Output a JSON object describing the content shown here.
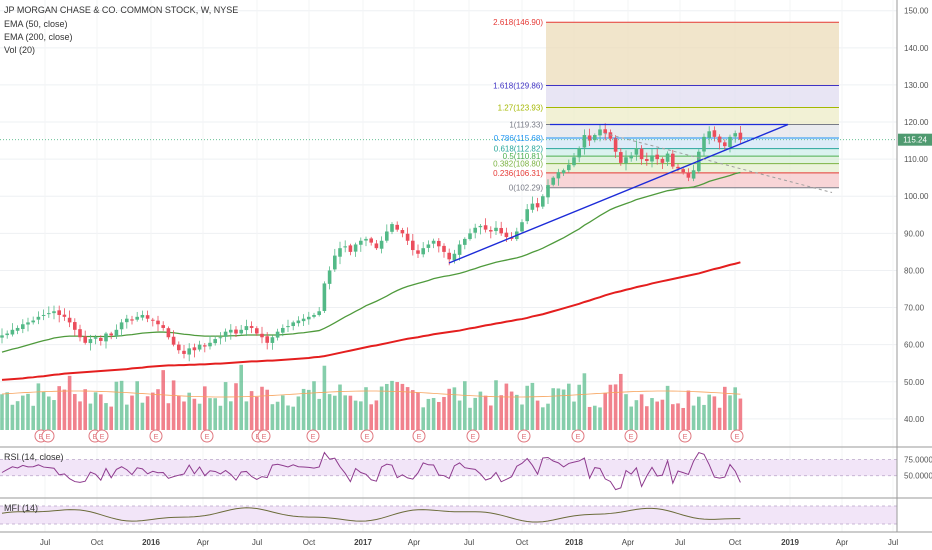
{
  "header": {
    "title": "JP MORGAN CHASE & CO. COMMON STOCK, W, NYSE",
    "ema50": "EMA (50, close)",
    "ema200": "EMA (200, close)",
    "vol": "Vol (20)"
  },
  "panes": {
    "rsi_label": "RSI (14, close)",
    "mfi_label": "MFI (14)"
  },
  "price_tag": "115.24",
  "colors": {
    "up": "#53b987",
    "down": "#eb4d5c",
    "ema50": "#4f9a3c",
    "ema200": "#e41e1e",
    "trend": "#1c2bd8",
    "rsi": "#8e3b8e",
    "mfi": "#6b6b3a"
  },
  "chart_data": [
    {
      "type": "candlestick",
      "title": "JP MORGAN CHASE & CO. COMMON STOCK, W, NYSE",
      "x_axis": {
        "tick_labels": [
          "Jul",
          "Oct",
          "2016",
          "Apr",
          "Jul",
          "Oct",
          "2017",
          "Apr",
          "Jul",
          "Oct",
          "2018",
          "Apr",
          "Jul",
          "Oct",
          "2019",
          "Apr",
          "Jul"
        ]
      },
      "y_axis": {
        "side": "right",
        "range": [
          37,
          151
        ],
        "ticks": [
          40,
          50,
          60,
          70,
          80,
          90,
          100,
          110,
          120,
          130,
          140,
          150
        ]
      },
      "last_price": 115.24,
      "fibonacci_levels": [
        {
          "label": "0(102.29)",
          "ratio": 0,
          "value": 102.29,
          "color": "#787b86"
        },
        {
          "label": "0.236(106.31)",
          "ratio": 0.236,
          "value": 106.31,
          "color": "#e53935"
        },
        {
          "label": "0.382(108.80)",
          "ratio": 0.382,
          "value": 108.8,
          "color": "#7cb342"
        },
        {
          "label": "0.5(110.81)",
          "ratio": 0.5,
          "value": 110.81,
          "color": "#4caf50"
        },
        {
          "label": "0.618(112.82)",
          "ratio": 0.618,
          "value": 112.82,
          "color": "#26a69a"
        },
        {
          "label": "0.786(115.68)",
          "ratio": 0.786,
          "value": 115.68,
          "color": "#2196f3"
        },
        {
          "label": "1(119.33)",
          "ratio": 1,
          "value": 119.33,
          "color": "#787b86"
        },
        {
          "label": "1.27(123.93)",
          "ratio": 1.27,
          "value": 123.93,
          "color": "#a4b800"
        },
        {
          "label": "1.618(129.86)",
          "ratio": 1.618,
          "value": 129.86,
          "color": "#3f33c4"
        },
        {
          "label": "2.618(146.90)",
          "ratio": 2.618,
          "value": 146.9,
          "color": "#e53935"
        }
      ],
      "approx_weekly_close": [
        62.5,
        63.0,
        64.0,
        64.5,
        65.5,
        66.0,
        66.5,
        67.5,
        68.0,
        68.5,
        69.0,
        68.0,
        67.5,
        66.0,
        64.0,
        62.0,
        60.5,
        61.5,
        62.0,
        61.0,
        63.0,
        62.5,
        64.0,
        66.0,
        67.0,
        66.5,
        67.5,
        68.0,
        67.0,
        66.5,
        65.5,
        64.5,
        62.0,
        60.0,
        58.5,
        57.5,
        59.0,
        58.5,
        60.0,
        59.5,
        60.5,
        61.5,
        62.0,
        63.5,
        64.0,
        63.0,
        64.0,
        65.0,
        64.5,
        63.0,
        62.0,
        60.5,
        62.0,
        63.5,
        64.5,
        65.0,
        66.0,
        66.5,
        67.0,
        67.5,
        68.0,
        69.0,
        76.5,
        80.0,
        84.0,
        86.0,
        86.5,
        85.0,
        87.0,
        88.0,
        88.5,
        87.5,
        86.0,
        88.0,
        90.5,
        92.5,
        91.0,
        90.0,
        88.0,
        85.5,
        84.5,
        86.0,
        87.0,
        88.0,
        86.5,
        85.0,
        83.0,
        84.5,
        87.0,
        88.5,
        90.0,
        91.5,
        92.0,
        91.0,
        90.5,
        91.5,
        90.0,
        89.0,
        88.5,
        90.5,
        93.0,
        96.5,
        98.0,
        97.0,
        100.0,
        103.0,
        105.0,
        106.5,
        107.0,
        108.5,
        110.5,
        113.0,
        116.5,
        115.0,
        116.5,
        118.0,
        117.0,
        115.5,
        112.0,
        109.0,
        110.5,
        111.0,
        113.0,
        110.0,
        109.5,
        111.0,
        110.0,
        109.0,
        111.5,
        108.0,
        107.5,
        106.5,
        105.0,
        107.0,
        112.0,
        116.0,
        117.5,
        116.0,
        114.5,
        113.5,
        116.0,
        117.0,
        115.24
      ],
      "approx_ema50": [
        58.0,
        58.4,
        58.8,
        59.1,
        59.5,
        59.9,
        60.3,
        60.7,
        61.1,
        61.4,
        61.8,
        62.0,
        62.2,
        62.3,
        62.3,
        62.3,
        62.2,
        62.2,
        62.2,
        62.2,
        62.2,
        62.2,
        62.3,
        62.4,
        62.6,
        62.7,
        62.9,
        63.1,
        63.2,
        63.3,
        63.4,
        63.4,
        63.3,
        63.2,
        63.0,
        62.8,
        62.7,
        62.5,
        62.4,
        62.3,
        62.3,
        62.3,
        62.3,
        62.3,
        62.4,
        62.4,
        62.5,
        62.6,
        62.6,
        62.6,
        62.6,
        62.6,
        62.6,
        62.6,
        62.7,
        62.8,
        62.9,
        63.1,
        63.2,
        63.4,
        63.6,
        63.8,
        64.4,
        65.1,
        65.9,
        66.7,
        67.5,
        68.2,
        69.0,
        69.7,
        70.5,
        71.1,
        71.7,
        72.4,
        73.1,
        73.9,
        74.6,
        75.2,
        75.7,
        76.1,
        76.5,
        76.9,
        77.3,
        77.8,
        78.1,
        78.4,
        78.6,
        78.9,
        79.2,
        79.6,
        80.1,
        80.5,
        81.0,
        81.4,
        81.8,
        82.2,
        82.5,
        82.8,
        83.1,
        83.4,
        83.8,
        84.3,
        84.9,
        85.4,
        86.0,
        86.7,
        87.4,
        88.1,
        88.8,
        89.6,
        90.4,
        91.2,
        92.2,
        93.0,
        93.9,
        94.8,
        95.6,
        96.4,
        97.0,
        97.5,
        98.0,
        98.5,
        99.1,
        99.5,
        99.9,
        100.3,
        100.7,
        101.1,
        101.5,
        101.7,
        102.0,
        102.2,
        102.3,
        102.5,
        102.9,
        103.4,
        104.0,
        104.4,
        104.8,
        105.2,
        105.6,
        106.1,
        106.4
      ],
      "approx_ema200": [
        50.5,
        50.6,
        50.7,
        50.8,
        50.9,
        51.1,
        51.2,
        51.4,
        51.5,
        51.7,
        51.9,
        52.0,
        52.2,
        52.3,
        52.4,
        52.5,
        52.6,
        52.7,
        52.8,
        52.9,
        53.0,
        53.1,
        53.2,
        53.3,
        53.4,
        53.6,
        53.7,
        53.8,
        54.0,
        54.1,
        54.2,
        54.3,
        54.4,
        54.4,
        54.5,
        54.5,
        54.6,
        54.6,
        54.7,
        54.7,
        54.8,
        54.9,
        54.9,
        55.0,
        55.1,
        55.2,
        55.3,
        55.4,
        55.5,
        55.5,
        55.6,
        55.7,
        55.7,
        55.8,
        55.9,
        56.0,
        56.1,
        56.2,
        56.3,
        56.4,
        56.6,
        56.7,
        56.9,
        57.2,
        57.5,
        57.8,
        58.1,
        58.4,
        58.7,
        59.0,
        59.3,
        59.6,
        59.8,
        60.1,
        60.4,
        60.7,
        61.0,
        61.3,
        61.6,
        61.8,
        62.0,
        62.3,
        62.5,
        62.8,
        63.0,
        63.2,
        63.4,
        63.6,
        63.8,
        64.1,
        64.4,
        64.6,
        64.9,
        65.2,
        65.4,
        65.7,
        65.9,
        66.2,
        66.4,
        66.7,
        66.9,
        67.2,
        67.6,
        67.9,
        68.2,
        68.6,
        69.0,
        69.4,
        69.8,
        70.2,
        70.6,
        71.0,
        71.5,
        71.9,
        72.4,
        72.8,
        73.3,
        73.7,
        74.1,
        74.4,
        74.8,
        75.1,
        75.5,
        75.8,
        76.1,
        76.5,
        76.8,
        77.1,
        77.4,
        77.7,
        78.0,
        78.3,
        78.6,
        78.9,
        79.2,
        79.6,
        80.0,
        80.4,
        80.7,
        81.1,
        81.5,
        81.8,
        82.2
      ]
    },
    {
      "type": "line",
      "title": "RSI (14, close)",
      "y_axis": {
        "ticks": [
          75.0,
          50.0
        ],
        "tick_labels": [
          "75.0000",
          "50.0000"
        ]
      }
    },
    {
      "type": "line",
      "title": "MFI (14)"
    }
  ]
}
